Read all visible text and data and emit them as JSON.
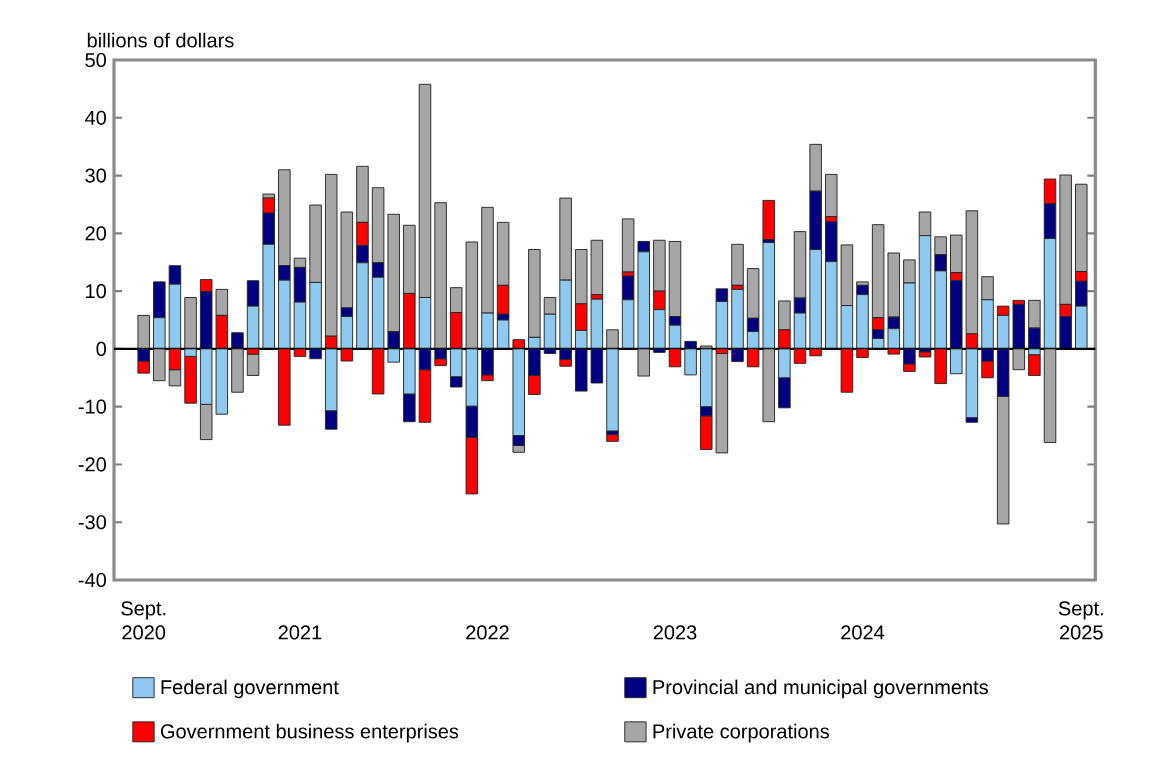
{
  "chart_data": {
    "type": "bar",
    "stacked": true,
    "ylabel": "billions of dollars",
    "categories": [
      "Sept. 2020",
      null,
      null,
      null,
      null,
      null,
      null,
      null,
      null,
      null,
      "2021",
      null,
      null,
      null,
      null,
      null,
      null,
      null,
      null,
      null,
      null,
      null,
      "2022",
      null,
      null,
      null,
      null,
      null,
      null,
      null,
      null,
      null,
      null,
      null,
      "2023",
      null,
      null,
      null,
      null,
      null,
      null,
      null,
      null,
      null,
      null,
      null,
      "2024",
      null,
      null,
      null,
      null,
      null,
      null,
      null,
      null,
      null,
      null,
      null,
      null,
      null,
      "Sept. 2025"
    ],
    "series": [
      {
        "name": "Federal government",
        "color": "#8ecaf0",
        "values": [
          0,
          5.4,
          11.2,
          -1.3,
          -9.6,
          -11.3,
          0,
          7.4,
          18.1,
          11.9,
          8.1,
          11.5,
          -10.7,
          5.6,
          14.9,
          12.4,
          -2.3,
          -7.8,
          8.9,
          0,
          -4.8,
          -9.9,
          6.2,
          5.0,
          -15.0,
          2.0,
          6.0,
          11.9,
          3.2,
          8.6,
          -14.2,
          8.5,
          16.8,
          6.8,
          4.1,
          -4.5,
          -10.0,
          8.2,
          10.3,
          3.0,
          18.4,
          -5.0,
          6.2,
          17.2,
          15.1,
          7.5,
          9.4,
          1.8,
          3.5,
          11.4,
          19.6,
          13.5,
          -4.3,
          -11.9,
          8.5,
          5.8,
          0,
          -1.0,
          19.1,
          0,
          7.4
        ]
      },
      {
        "name": "Provincial and municipal governments",
        "color": "#000080",
        "values": [
          -2.1,
          6.2,
          3.2,
          0,
          9.9,
          0,
          2.8,
          4.4,
          5.4,
          2.5,
          6.0,
          -1.7,
          -3.2,
          1.5,
          3.0,
          2.5,
          3.0,
          -4.8,
          -3.6,
          -1.7,
          -1.8,
          -5.4,
          -4.5,
          1.0,
          -1.7,
          -4.6,
          -0.8,
          -1.8,
          -7.3,
          -5.9,
          -0.6,
          4.1,
          1.8,
          -0.6,
          1.5,
          1.3,
          -1.6,
          2.2,
          -2.2,
          2.3,
          0.5,
          -5.2,
          2.6,
          10.1,
          6.9,
          0,
          1.6,
          1.5,
          2.0,
          -2.6,
          -0.5,
          2.8,
          11.8,
          -0.8,
          -2.1,
          -8.2,
          7.7,
          3.6,
          6.0,
          5.6,
          4.3
        ]
      },
      {
        "name": "Government business enterprises",
        "color": "#ff0000",
        "values": [
          -2.1,
          0,
          -3.6,
          -8.1,
          2.1,
          5.8,
          0,
          -0.9,
          2.6,
          -13.2,
          -1.3,
          0,
          2.2,
          -2.1,
          4.0,
          -7.8,
          0,
          9.6,
          -9.1,
          -1.2,
          6.3,
          -9.8,
          -1.0,
          5.0,
          1.6,
          -3.3,
          0,
          -1.2,
          4.6,
          0.8,
          -1.2,
          0.7,
          0,
          3.2,
          -3.1,
          0,
          -5.8,
          -0.8,
          0.7,
          -3.1,
          6.8,
          3.3,
          -2.5,
          -1.2,
          0.9,
          -7.5,
          -1.5,
          2.1,
          -0.9,
          -1.3,
          -0.9,
          -6.0,
          1.4,
          2.6,
          -2.9,
          1.6,
          0.7,
          -3.6,
          4.3,
          2.1,
          1.7
        ]
      },
      {
        "name": "Private corporations",
        "color": "#a6a6a6",
        "values": [
          5.8,
          -5.5,
          -2.8,
          8.9,
          -6.1,
          4.5,
          -7.5,
          -3.7,
          0.7,
          16.6,
          1.6,
          13.4,
          28.0,
          16.6,
          9.7,
          13.0,
          20.3,
          11.8,
          36.9,
          25.3,
          4.3,
          18.5,
          18.3,
          10.9,
          -1.2,
          15.2,
          2.9,
          14.2,
          9.4,
          9.4,
          3.3,
          9.2,
          -4.7,
          8.8,
          13.0,
          0,
          0.5,
          -17.2,
          7.1,
          8.6,
          -12.6,
          5.0,
          11.5,
          8.1,
          7.3,
          10.5,
          0.6,
          16.1,
          11.1,
          4.0,
          4.1,
          3.1,
          6.5,
          21.3,
          4.0,
          -22.1,
          -3.6,
          4.8,
          -16.2,
          22.4,
          15.1
        ]
      }
    ],
    "ylim": [
      -40,
      50
    ],
    "yticks": [
      -40,
      -30,
      -20,
      -10,
      0,
      10,
      20,
      30,
      40,
      50
    ],
    "legend": "bottom"
  }
}
